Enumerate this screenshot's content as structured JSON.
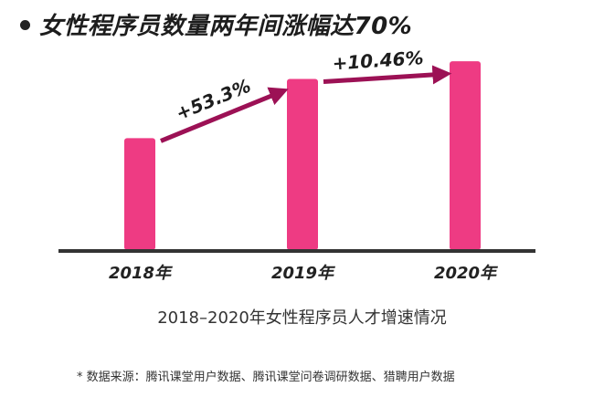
{
  "headline": "女性程序员数量两年间涨幅达70%",
  "caption": "2018–2020年女性程序员人才增速情况",
  "source_note": "* 数据来源：腾讯课堂用户数据、腾讯课堂问卷调研数据、猎聘用户数据",
  "colors": {
    "bar": "#ee3b83",
    "arrow": "#9c1155",
    "baseline": "#333333",
    "text": "#222222"
  },
  "chart_data": {
    "type": "bar",
    "categories": [
      "2018年",
      "2019年",
      "2020年"
    ],
    "values": [
      100,
      153.3,
      169.3
    ],
    "value_unit": "relative index (2018 = 100)",
    "ylim": [
      0,
      185
    ],
    "grid": false,
    "annotations": [
      {
        "from": "2018年",
        "to": "2019年",
        "label": "+53.3%"
      },
      {
        "from": "2019年",
        "to": "2020年",
        "label": "+10.46%"
      }
    ]
  }
}
